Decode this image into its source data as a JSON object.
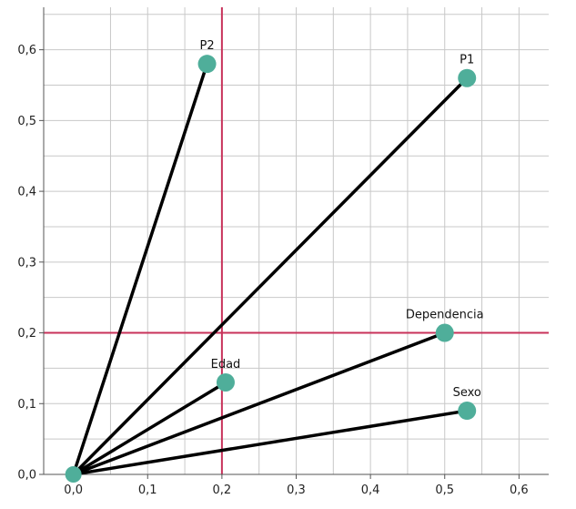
{
  "chart_data": {
    "type": "scatter",
    "title": "",
    "xlabel": "",
    "ylabel": "",
    "xlim": [
      -0.04,
      0.64
    ],
    "ylim": [
      0.0,
      0.66
    ],
    "x_ticks": [
      "0,0",
      "0,1",
      "0,2",
      "0,3",
      "0,4",
      "0,5",
      "0,6"
    ],
    "x_tick_values": [
      0.0,
      0.1,
      0.2,
      0.3,
      0.4,
      0.5,
      0.6
    ],
    "y_ticks": [
      "0,0",
      "0,1",
      "0,2",
      "0,3",
      "0,4",
      "0,5",
      "0,6"
    ],
    "y_tick_values": [
      0.0,
      0.1,
      0.2,
      0.3,
      0.4,
      0.5,
      0.6
    ],
    "grid": true,
    "origin": {
      "x": 0.0,
      "y": 0.0
    },
    "reference_lines": {
      "x": 0.2,
      "y": 0.2
    },
    "points": [
      {
        "label": "P2",
        "x": 0.18,
        "y": 0.58
      },
      {
        "label": "P1",
        "x": 0.53,
        "y": 0.56
      },
      {
        "label": "Dependencia",
        "x": 0.5,
        "y": 0.2
      },
      {
        "label": "Edad",
        "x": 0.205,
        "y": 0.13
      },
      {
        "label": "Sexo",
        "x": 0.53,
        "y": 0.09
      }
    ],
    "colors": {
      "point": "#4fae9a",
      "vector": "#000000",
      "reference": "#c8325a",
      "grid": "#c8c8c8",
      "axis": "#555555"
    }
  }
}
